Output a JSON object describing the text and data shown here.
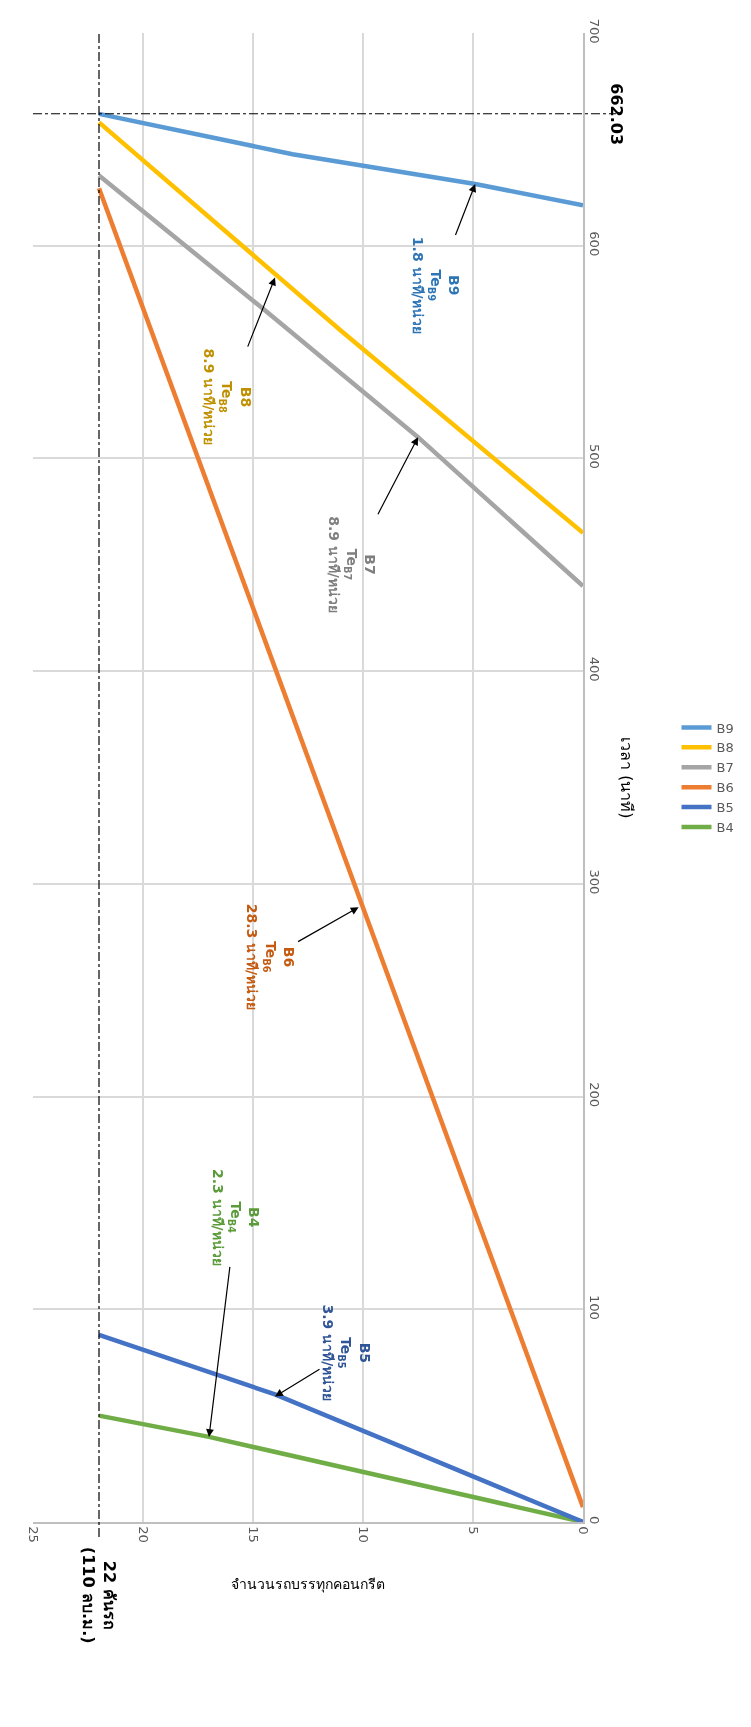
{
  "chart_data": {
    "type": "line",
    "xlabel": "จำนวนรถบรรทุกคอนกรีต",
    "ylabel": "เวลา (นาที)",
    "xlim": [
      25,
      0
    ],
    "xticks": [
      0,
      5,
      10,
      15,
      20,
      25
    ],
    "ylim": [
      0,
      700
    ],
    "yticks": [
      0,
      100,
      200,
      300,
      400,
      500,
      600,
      700
    ],
    "grid": true,
    "legend": "right",
    "line_style": "solid",
    "marker": "none",
    "series": [
      {
        "name": "B4",
        "color": "#70ad47",
        "x": [
          0,
          17,
          22
        ],
        "values": [
          0,
          40,
          50
        ]
      },
      {
        "name": "B5",
        "color": "#4472c4",
        "x": [
          0,
          7,
          14,
          22
        ],
        "values": [
          0,
          30,
          60,
          88
        ]
      },
      {
        "name": "B6",
        "color": "#ed7d31",
        "x": [
          0,
          22
        ],
        "values": [
          7,
          627
        ]
      },
      {
        "name": "B7",
        "color": "#a5a5a5",
        "x": [
          0,
          7.5,
          14.5,
          22
        ],
        "values": [
          440,
          510,
          570,
          633
        ]
      },
      {
        "name": "B8",
        "color": "#ffc000",
        "x": [
          0,
          11,
          22
        ],
        "values": [
          465,
          560,
          658
        ]
      },
      {
        "name": "B9",
        "color": "#5b9bd5",
        "x": [
          0,
          4.9,
          13.2,
          22
        ],
        "values": [
          619,
          629,
          643,
          662
        ]
      }
    ],
    "ref_lines": [
      {
        "axis": "y",
        "value": 662.03,
        "label": "662.03",
        "line_style": "dashed",
        "color": "#000000"
      },
      {
        "axis": "x",
        "value": 22,
        "label": "22 คันรถ\n(110 ลบ.ม.)",
        "line_style": "dashed",
        "color": "#000000"
      }
    ],
    "annotations": [
      {
        "text": "B4\nTe$_{B4}$\n2.3 นาที/หน่วย",
        "x": 17,
        "y": 40
      },
      {
        "text": "B5\nTe$_{B5}$\n3.9 นาที/หน่วย",
        "x": 14,
        "y": 59
      },
      {
        "text": "B6\nTe$_{B6}$\n28.3 นาที/หน่วย",
        "x": 10.2,
        "y": 289
      },
      {
        "text": "B7\nTe$_{B7}$\n8.9 นาที/หน่วย",
        "x": 7.5,
        "y": 510
      },
      {
        "text": "B8\nTe$_{B8}$\n8.9 นาที/หน่วย",
        "x": 14,
        "y": 585
      },
      {
        "text": "B9\nTe$_{B9}$\n1.8 นาที/หน่วย",
        "x": 4.9,
        "y": 629
      }
    ]
  }
}
